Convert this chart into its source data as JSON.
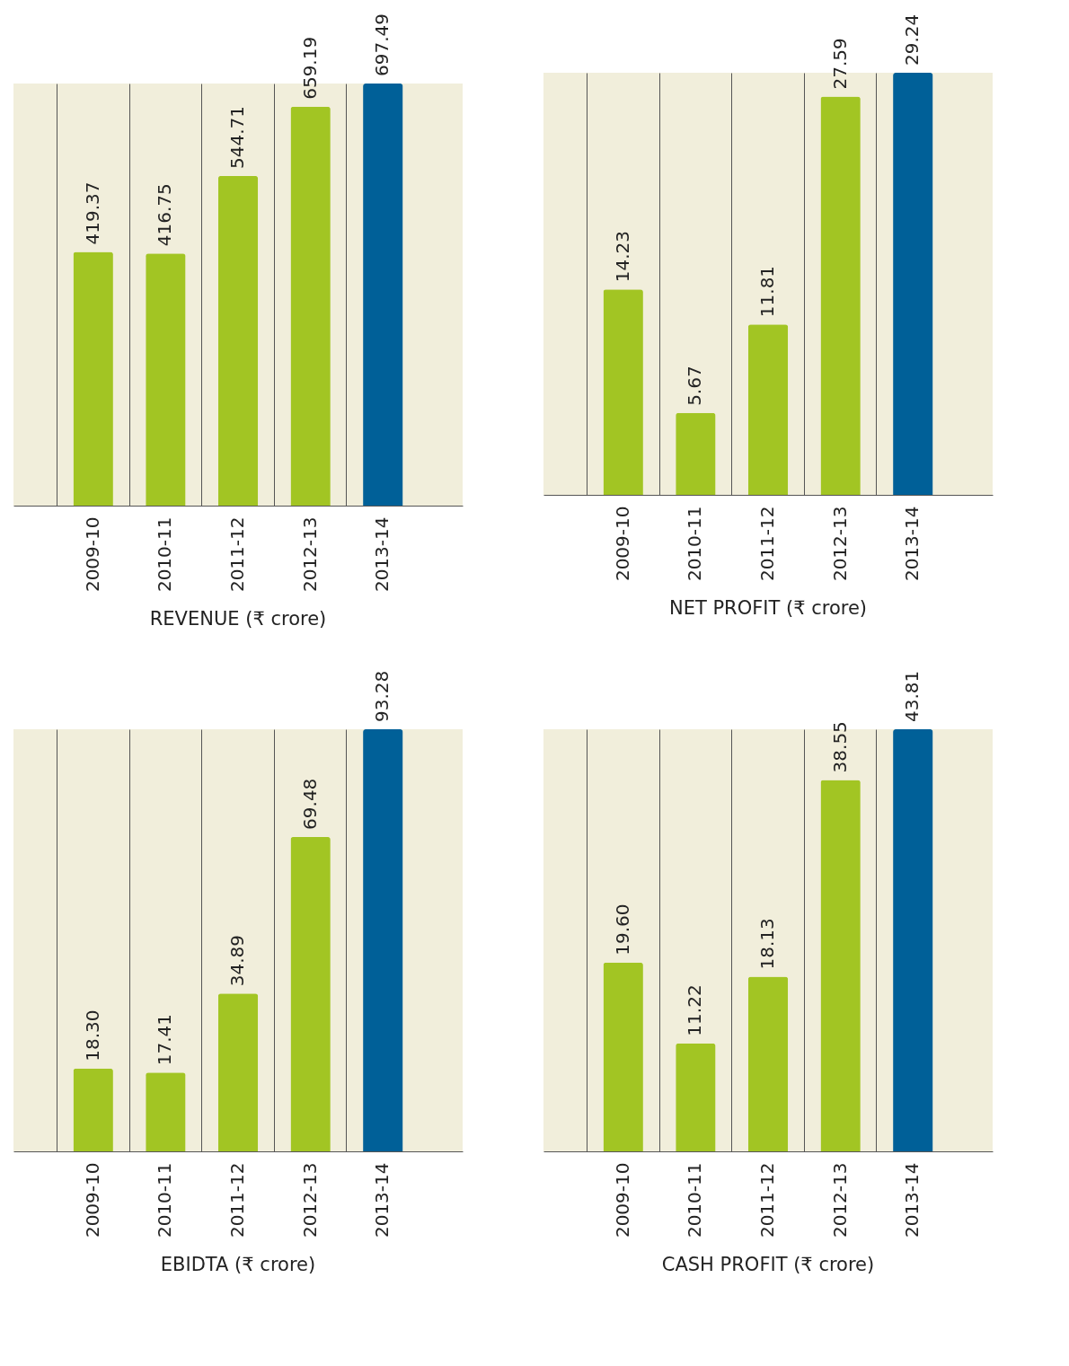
{
  "chart_data": [
    {
      "type": "bar",
      "title": "REVENUE (₹ crore)",
      "categories": [
        "2009-10",
        "2010-11",
        "2011-12",
        "2012-13",
        "2013-14"
      ],
      "values": [
        419.37,
        416.75,
        544.71,
        659.19,
        697.49
      ],
      "colors": [
        "#a2c523",
        "#a2c523",
        "#a2c523",
        "#a2c523",
        "#006098"
      ],
      "data_labels": true,
      "grid": "x"
    },
    {
      "type": "bar",
      "title": "NET PROFIT (₹ crore)",
      "categories": [
        "2009-10",
        "2010-11",
        "2011-12",
        "2012-13",
        "2013-14"
      ],
      "values": [
        14.23,
        5.67,
        11.81,
        27.59,
        29.24
      ],
      "colors": [
        "#a2c523",
        "#a2c523",
        "#a2c523",
        "#a2c523",
        "#006098"
      ],
      "data_labels": true,
      "grid": "x"
    },
    {
      "type": "bar",
      "title": "EBIDTA (₹ crore)",
      "categories": [
        "2009-10",
        "2010-11",
        "2011-12",
        "2012-13",
        "2013-14"
      ],
      "values": [
        18.3,
        17.41,
        34.89,
        69.48,
        93.28
      ],
      "value_labels": [
        "18.30",
        "17.41",
        "34.89",
        "69.48",
        "93.28"
      ],
      "colors": [
        "#a2c523",
        "#a2c523",
        "#a2c523",
        "#a2c523",
        "#006098"
      ],
      "grid": "x"
    },
    {
      "type": "bar",
      "title": "CASH PROFIT (₹ crore)",
      "categories": [
        "2009-10",
        "2010-11",
        "2011-12",
        "2012-13",
        "2013-14"
      ],
      "values": [
        19.6,
        11.22,
        18.13,
        38.55,
        43.81
      ],
      "value_labels": [
        "19.60",
        "11.22",
        "18.13",
        "38.55",
        "43.81"
      ],
      "colors": [
        "#a2c523",
        "#a2c523",
        "#a2c523",
        "#a2c523",
        "#006098"
      ],
      "grid": "x"
    }
  ]
}
